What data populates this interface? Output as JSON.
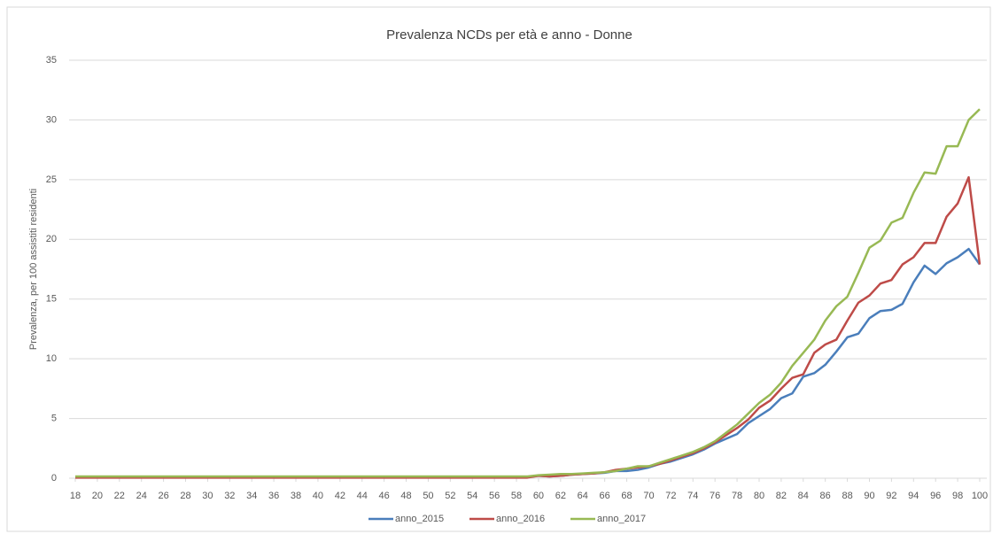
{
  "chart_data": {
    "type": "line",
    "title": "Prevalenza NCDs per età  e anno - Donne",
    "ylabel": "Prevalenza, per 100 assistiti residenti",
    "x": [
      18,
      19,
      20,
      21,
      22,
      23,
      24,
      25,
      26,
      27,
      28,
      29,
      30,
      31,
      32,
      33,
      34,
      35,
      36,
      37,
      38,
      39,
      40,
      41,
      42,
      43,
      44,
      45,
      46,
      47,
      48,
      49,
      50,
      51,
      52,
      53,
      54,
      55,
      56,
      57,
      58,
      59,
      60,
      61,
      62,
      63,
      64,
      65,
      66,
      67,
      68,
      69,
      70,
      71,
      72,
      73,
      74,
      75,
      76,
      77,
      78,
      79,
      80,
      81,
      82,
      83,
      84,
      85,
      86,
      87,
      88,
      89,
      90,
      91,
      92,
      93,
      94,
      95,
      96,
      97,
      98,
      99,
      100
    ],
    "xlim": [
      18,
      100
    ],
    "xticks": [
      18,
      20,
      22,
      24,
      26,
      28,
      30,
      32,
      34,
      36,
      38,
      40,
      42,
      44,
      46,
      48,
      50,
      52,
      54,
      56,
      58,
      60,
      62,
      64,
      66,
      68,
      70,
      72,
      74,
      76,
      78,
      80,
      82,
      84,
      86,
      88,
      90,
      92,
      94,
      96,
      98,
      100
    ],
    "ylim": [
      0,
      35
    ],
    "yticks": [
      0,
      5,
      10,
      15,
      20,
      25,
      30,
      35
    ],
    "grid": true,
    "legend": "bottom",
    "series": [
      {
        "name": "anno_2015",
        "color": "#4a7ebb",
        "values": [
          0.1,
          0.1,
          0.1,
          0.1,
          0.1,
          0.1,
          0.1,
          0.1,
          0.1,
          0.1,
          0.1,
          0.1,
          0.1,
          0.1,
          0.1,
          0.1,
          0.1,
          0.1,
          0.1,
          0.1,
          0.1,
          0.1,
          0.1,
          0.1,
          0.1,
          0.1,
          0.1,
          0.1,
          0.1,
          0.1,
          0.1,
          0.1,
          0.1,
          0.1,
          0.1,
          0.1,
          0.1,
          0.1,
          0.1,
          0.1,
          0.1,
          0.1,
          0.2,
          0.15,
          0.2,
          0.3,
          0.35,
          0.4,
          0.45,
          0.6,
          0.6,
          0.7,
          0.9,
          1.2,
          1.4,
          1.7,
          2.0,
          2.4,
          2.9,
          3.3,
          3.7,
          4.6,
          5.2,
          5.8,
          6.7,
          7.1,
          8.5,
          8.8,
          9.5,
          10.6,
          11.8,
          12.1,
          13.4,
          14.0,
          14.1,
          14.6,
          16.4,
          17.8,
          17.1,
          18.0,
          18.5,
          19.2,
          17.9
        ]
      },
      {
        "name": "anno_2016",
        "color": "#be4b48",
        "values": [
          0.05,
          0.05,
          0.05,
          0.05,
          0.05,
          0.05,
          0.05,
          0.05,
          0.05,
          0.05,
          0.05,
          0.05,
          0.05,
          0.05,
          0.05,
          0.05,
          0.05,
          0.05,
          0.05,
          0.05,
          0.05,
          0.05,
          0.05,
          0.05,
          0.05,
          0.05,
          0.05,
          0.05,
          0.05,
          0.05,
          0.05,
          0.05,
          0.05,
          0.05,
          0.05,
          0.05,
          0.05,
          0.05,
          0.05,
          0.05,
          0.05,
          0.05,
          0.2,
          0.15,
          0.2,
          0.3,
          0.35,
          0.4,
          0.5,
          0.7,
          0.8,
          0.9,
          1.0,
          1.2,
          1.5,
          1.8,
          2.1,
          2.5,
          3.0,
          3.6,
          4.2,
          4.9,
          5.9,
          6.5,
          7.5,
          8.4,
          8.7,
          10.5,
          11.2,
          11.6,
          13.2,
          14.7,
          15.3,
          16.3,
          16.6,
          17.9,
          18.5,
          19.7,
          19.7,
          21.9,
          23.0,
          25.2,
          17.9
        ]
      },
      {
        "name": "anno_2017",
        "color": "#98b954",
        "values": [
          0.15,
          0.15,
          0.15,
          0.15,
          0.15,
          0.15,
          0.15,
          0.15,
          0.15,
          0.15,
          0.15,
          0.15,
          0.15,
          0.15,
          0.15,
          0.15,
          0.15,
          0.15,
          0.15,
          0.15,
          0.15,
          0.15,
          0.15,
          0.15,
          0.15,
          0.15,
          0.15,
          0.15,
          0.15,
          0.15,
          0.15,
          0.15,
          0.15,
          0.15,
          0.15,
          0.15,
          0.15,
          0.15,
          0.15,
          0.15,
          0.15,
          0.15,
          0.25,
          0.3,
          0.35,
          0.35,
          0.4,
          0.45,
          0.5,
          0.6,
          0.8,
          1.0,
          1.0,
          1.3,
          1.6,
          1.9,
          2.2,
          2.6,
          3.1,
          3.8,
          4.5,
          5.4,
          6.3,
          7.0,
          8.0,
          9.4,
          10.5,
          11.6,
          13.2,
          14.4,
          15.2,
          17.2,
          19.3,
          19.9,
          21.4,
          21.8,
          23.9,
          25.6,
          25.5,
          27.8,
          27.8,
          30.0,
          30.9
        ]
      }
    ]
  }
}
